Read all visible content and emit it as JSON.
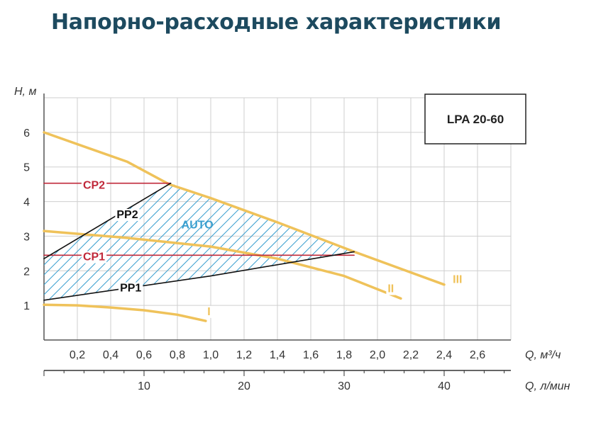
{
  "title": "Напорно-расходные характеристики",
  "chart_data": {
    "type": "line",
    "model_label": "LPA 20-60",
    "ylabel": "H, м",
    "xlabel": "Q, м³/ч",
    "xlabel2": "Q, л/мин",
    "xlim": [
      0,
      2.8
    ],
    "ylim": [
      0,
      7
    ],
    "x_ticks": [
      "0,2",
      "0,4",
      "0,6",
      "0,8",
      "1,0",
      "1,2",
      "1,4",
      "1,6",
      "1,8",
      "2,0",
      "2,2",
      "2,4",
      "2,6"
    ],
    "x_tick_values": [
      0.2,
      0.4,
      0.6,
      0.8,
      1.0,
      1.2,
      1.4,
      1.6,
      1.8,
      2.0,
      2.2,
      2.4,
      2.6
    ],
    "y_ticks": [
      "1",
      "2",
      "3",
      "4",
      "5",
      "6"
    ],
    "y_tick_values": [
      1,
      2,
      3,
      4,
      5,
      6
    ],
    "lmin_ticks": [
      "10",
      "20",
      "30",
      "40"
    ],
    "lmin_tick_values": [
      10,
      20,
      30,
      40
    ],
    "grid": true,
    "colors": {
      "speed_curve": "#efc25a",
      "cp": "#c0283a",
      "pp": "#111111",
      "auto": "#3a9fcf",
      "grid": "#cfcfcf"
    },
    "series": [
      {
        "name": "I",
        "kind": "speed",
        "points": [
          [
            0,
            1.02
          ],
          [
            0.2,
            1.0
          ],
          [
            0.4,
            0.94
          ],
          [
            0.6,
            0.86
          ],
          [
            0.8,
            0.73
          ],
          [
            0.97,
            0.55
          ]
        ]
      },
      {
        "name": "II",
        "kind": "speed",
        "points": [
          [
            0,
            3.15
          ],
          [
            0.5,
            2.95
          ],
          [
            1.0,
            2.7
          ],
          [
            1.4,
            2.35
          ],
          [
            1.8,
            1.85
          ],
          [
            2.14,
            1.2
          ]
        ]
      },
      {
        "name": "III",
        "kind": "speed",
        "points": [
          [
            0,
            6.0
          ],
          [
            0.5,
            5.15
          ],
          [
            0.75,
            4.5
          ],
          [
            1.0,
            4.1
          ],
          [
            1.4,
            3.4
          ],
          [
            1.86,
            2.55
          ],
          [
            2.4,
            1.6
          ]
        ]
      },
      {
        "name": "CP2",
        "kind": "cp",
        "points": [
          [
            0,
            4.53
          ],
          [
            0.76,
            4.53
          ]
        ]
      },
      {
        "name": "CP1",
        "kind": "cp",
        "points": [
          [
            0,
            2.45
          ],
          [
            1.86,
            2.45
          ]
        ]
      },
      {
        "name": "PP2",
        "kind": "pp",
        "points": [
          [
            0,
            2.35
          ],
          [
            0.76,
            4.53
          ]
        ]
      },
      {
        "name": "PP1",
        "kind": "pp",
        "points": [
          [
            0,
            1.15
          ],
          [
            1.0,
            1.85
          ],
          [
            1.86,
            2.55
          ]
        ]
      }
    ],
    "annotations": [
      {
        "text": "AUTO",
        "x": 0.92,
        "y": 3.22
      }
    ]
  }
}
